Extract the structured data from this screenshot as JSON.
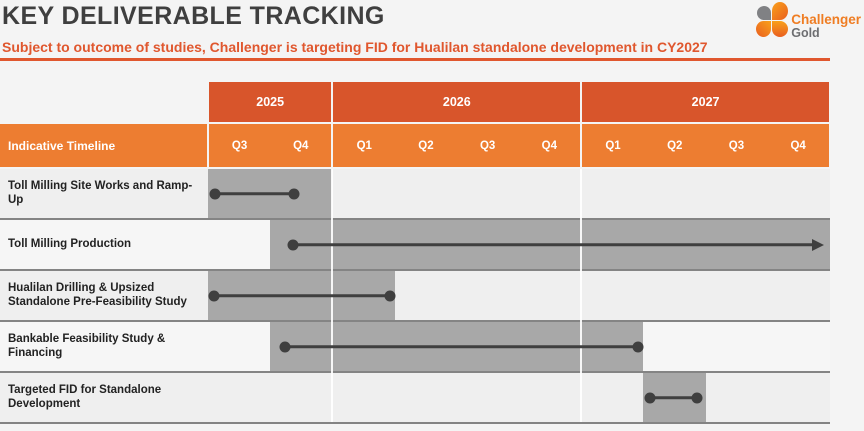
{
  "colors": {
    "bg": "#F4F4F4",
    "accent": "#E0572E",
    "year": "#D8552B",
    "quarter": "#ED7D31",
    "band": "#A8A8A8",
    "dark": "#3F3F3F",
    "sep": "#848484",
    "row-odd": "#EFEFEF",
    "row-even": "#F6F6F6",
    "logo-orange": "#EF7D23",
    "logo-gray": "#6D6E71"
  },
  "header": {
    "title": "KEY DELIVERABLE TRACKING",
    "subtitle": "Subject to outcome of studies, Challenger is targeting FID for Hualilan standalone development in CY2027"
  },
  "logo": {
    "line1": "Challenger",
    "line2": "Gold"
  },
  "chart_data": {
    "type": "gantt",
    "title": "Indicative Timeline",
    "years": [
      {
        "label": "2025",
        "quarters": [
          "Q3",
          "Q4"
        ]
      },
      {
        "label": "2026",
        "quarters": [
          "Q1",
          "Q2",
          "Q3",
          "Q4"
        ]
      },
      {
        "label": "2027",
        "quarters": [
          "Q1",
          "Q2",
          "Q3",
          "Q4"
        ]
      }
    ],
    "axis_note": "quarter units: 0 = start of 2025-Q3, 10 = end of 2027-Q4",
    "tasks": [
      {
        "label": "Toll Milling Site Works and Ramp-Up",
        "band_start": "2025-Q3",
        "band_end": "2025-Q4",
        "band_q": [
          0,
          2
        ],
        "line_q": [
          0.11,
          1.38
        ],
        "start_marker": "dot",
        "end_marker": "dot"
      },
      {
        "label": "Toll Milling Production",
        "band_start": "2025-Q4",
        "band_end": "2027-Q4",
        "band_q": [
          1,
          10
        ],
        "line_q": [
          1.37,
          9.88
        ],
        "start_marker": "dot",
        "end_marker": "arrow"
      },
      {
        "label": "Hualilan Drilling & Upsized Standalone Pre-Feasibility Study",
        "band_start": "2025-Q3",
        "band_end": "2026-Q1",
        "band_q": [
          0,
          3
        ],
        "line_q": [
          0.1,
          2.93
        ],
        "start_marker": "dot",
        "end_marker": "dot"
      },
      {
        "label": "Bankable Feasibility Study & Financing",
        "band_start": "2025-Q4",
        "band_end": "2027-Q1",
        "band_q": [
          1,
          7
        ],
        "line_q": [
          1.24,
          6.91
        ],
        "start_marker": "dot",
        "end_marker": "dot"
      },
      {
        "label": "Targeted FID for Standalone Development",
        "band_start": "2027-Q2",
        "band_end": "2027-Q2",
        "band_q": [
          7,
          8
        ],
        "line_q": [
          7.11,
          7.86
        ],
        "start_marker": "dot",
        "end_marker": "dot"
      }
    ]
  }
}
